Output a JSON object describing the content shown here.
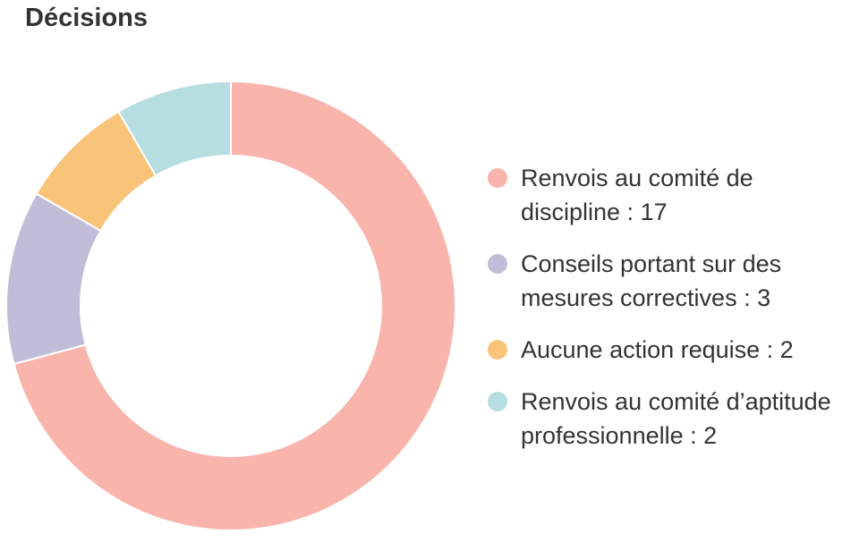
{
  "chart_data": {
    "type": "donut",
    "title": "Décisions",
    "categories": [
      "Renvois au comité de discipline : 17",
      "Conseils portant sur des mesures correctives : 3",
      "Aucune action requise : 2",
      "Renvois au comité d’aptitude professionnelle : 2"
    ],
    "values": [
      17,
      3,
      2,
      2
    ],
    "colors": [
      "#f9b4ac",
      "#c0bdd8",
      "#f9c37a",
      "#b6dde0"
    ]
  }
}
